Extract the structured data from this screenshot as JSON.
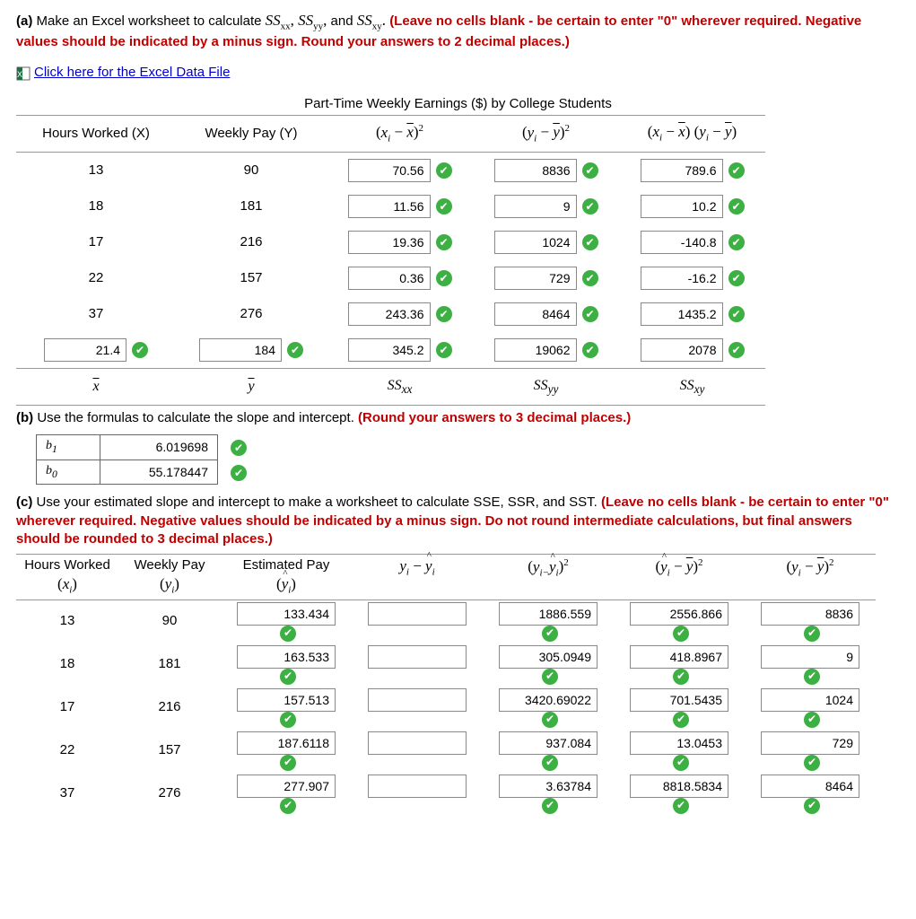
{
  "a": {
    "prefix": "(a)",
    "text_main": " Make an Excel worksheet to calculate ",
    "ss_terms": [
      "SS",
      "xx",
      ", SS",
      "yy",
      ", and SS",
      "xy",
      ". "
    ],
    "red": "(Leave no cells blank - be certain to enter \"0\" wherever required. Negative values should be indicated by a minus sign. Round your answers to 2 decimal places.)",
    "link": "Click here for the Excel Data File",
    "title": "Part-Time Weekly Earnings ($) by College Students",
    "headers": {
      "x": "Hours Worked (X)",
      "y": "Weekly Pay (Y)",
      "c1": "(x_i − x̄)²",
      "c2": "(y_i − ȳ)²",
      "c3": "(x_i − x̄)(y_i − ȳ)"
    },
    "rows": [
      {
        "x": "13",
        "y": "90",
        "c1": "70.56",
        "c2": "8836",
        "c3": "789.6"
      },
      {
        "x": "18",
        "y": "181",
        "c1": "11.56",
        "c2": "9",
        "c3": "10.2"
      },
      {
        "x": "17",
        "y": "216",
        "c1": "19.36",
        "c2": "1024",
        "c3": "-140.8"
      },
      {
        "x": "22",
        "y": "157",
        "c1": "0.36",
        "c2": "729",
        "c3": "-16.2"
      },
      {
        "x": "37",
        "y": "276",
        "c1": "243.36",
        "c2": "8464",
        "c3": "1435.2"
      }
    ],
    "totals": {
      "x": "21.4",
      "y": "184",
      "c1": "345.2",
      "c2": "19062",
      "c3": "2078"
    },
    "footers": {
      "x": "x̄",
      "y": "ȳ",
      "c1": "SS_xx",
      "c2": "SS_yy",
      "c3": "SS_xy"
    }
  },
  "b": {
    "prefix": "(b)",
    "text": " Use the formulas to calculate the slope and intercept. ",
    "red": "(Round your answers to 3 decimal places.)",
    "r1": {
      "l": "b₁",
      "v": "6.019698"
    },
    "r2": {
      "l": "b₀",
      "v": "55.178447"
    }
  },
  "c": {
    "prefix": "(c)",
    "text": " Use your estimated slope and intercept to make a worksheet to calculate SSE, SSR, and SST. ",
    "red": "(Leave no cells blank - be certain to enter \"0\" wherever required. Negative values should be indicated by a minus sign. Do not round intermediate calculations, but final answers should be rounded to 3 decimal places.)",
    "headers": {
      "h1a": "Hours Worked",
      "h1b": "(xᵢ)",
      "h2a": "Weekly Pay",
      "h2b": "(yᵢ)",
      "h3a": "Estimated Pay",
      "h3b": "(ŷᵢ)",
      "h4": "yᵢ − ŷᵢ",
      "h5": "(yᵢ−ŷᵢ)²",
      "h6": "(ŷᵢ − ȳ)²",
      "h7": "(yᵢ − ȳ)²"
    },
    "rows": [
      {
        "x": "13",
        "y": "90",
        "yh": "133.434",
        "d": "",
        "d2": "1886.559",
        "r": "2556.866",
        "t": "8836"
      },
      {
        "x": "18",
        "y": "181",
        "yh": "163.533",
        "d": "",
        "d2": "305.0949",
        "r": "418.8967",
        "t": "9"
      },
      {
        "x": "17",
        "y": "216",
        "yh": "157.513",
        "d": "",
        "d2": "3420.69022",
        "r": "701.5435",
        "t": "1024"
      },
      {
        "x": "22",
        "y": "157",
        "yh": "187.6118",
        "d": "",
        "d2": "937.084",
        "r": "13.0453",
        "t": "729"
      },
      {
        "x": "37",
        "y": "276",
        "yh": "277.907",
        "d": "",
        "d2": "3.63784",
        "r": "8818.5834",
        "t": "8464"
      }
    ]
  }
}
